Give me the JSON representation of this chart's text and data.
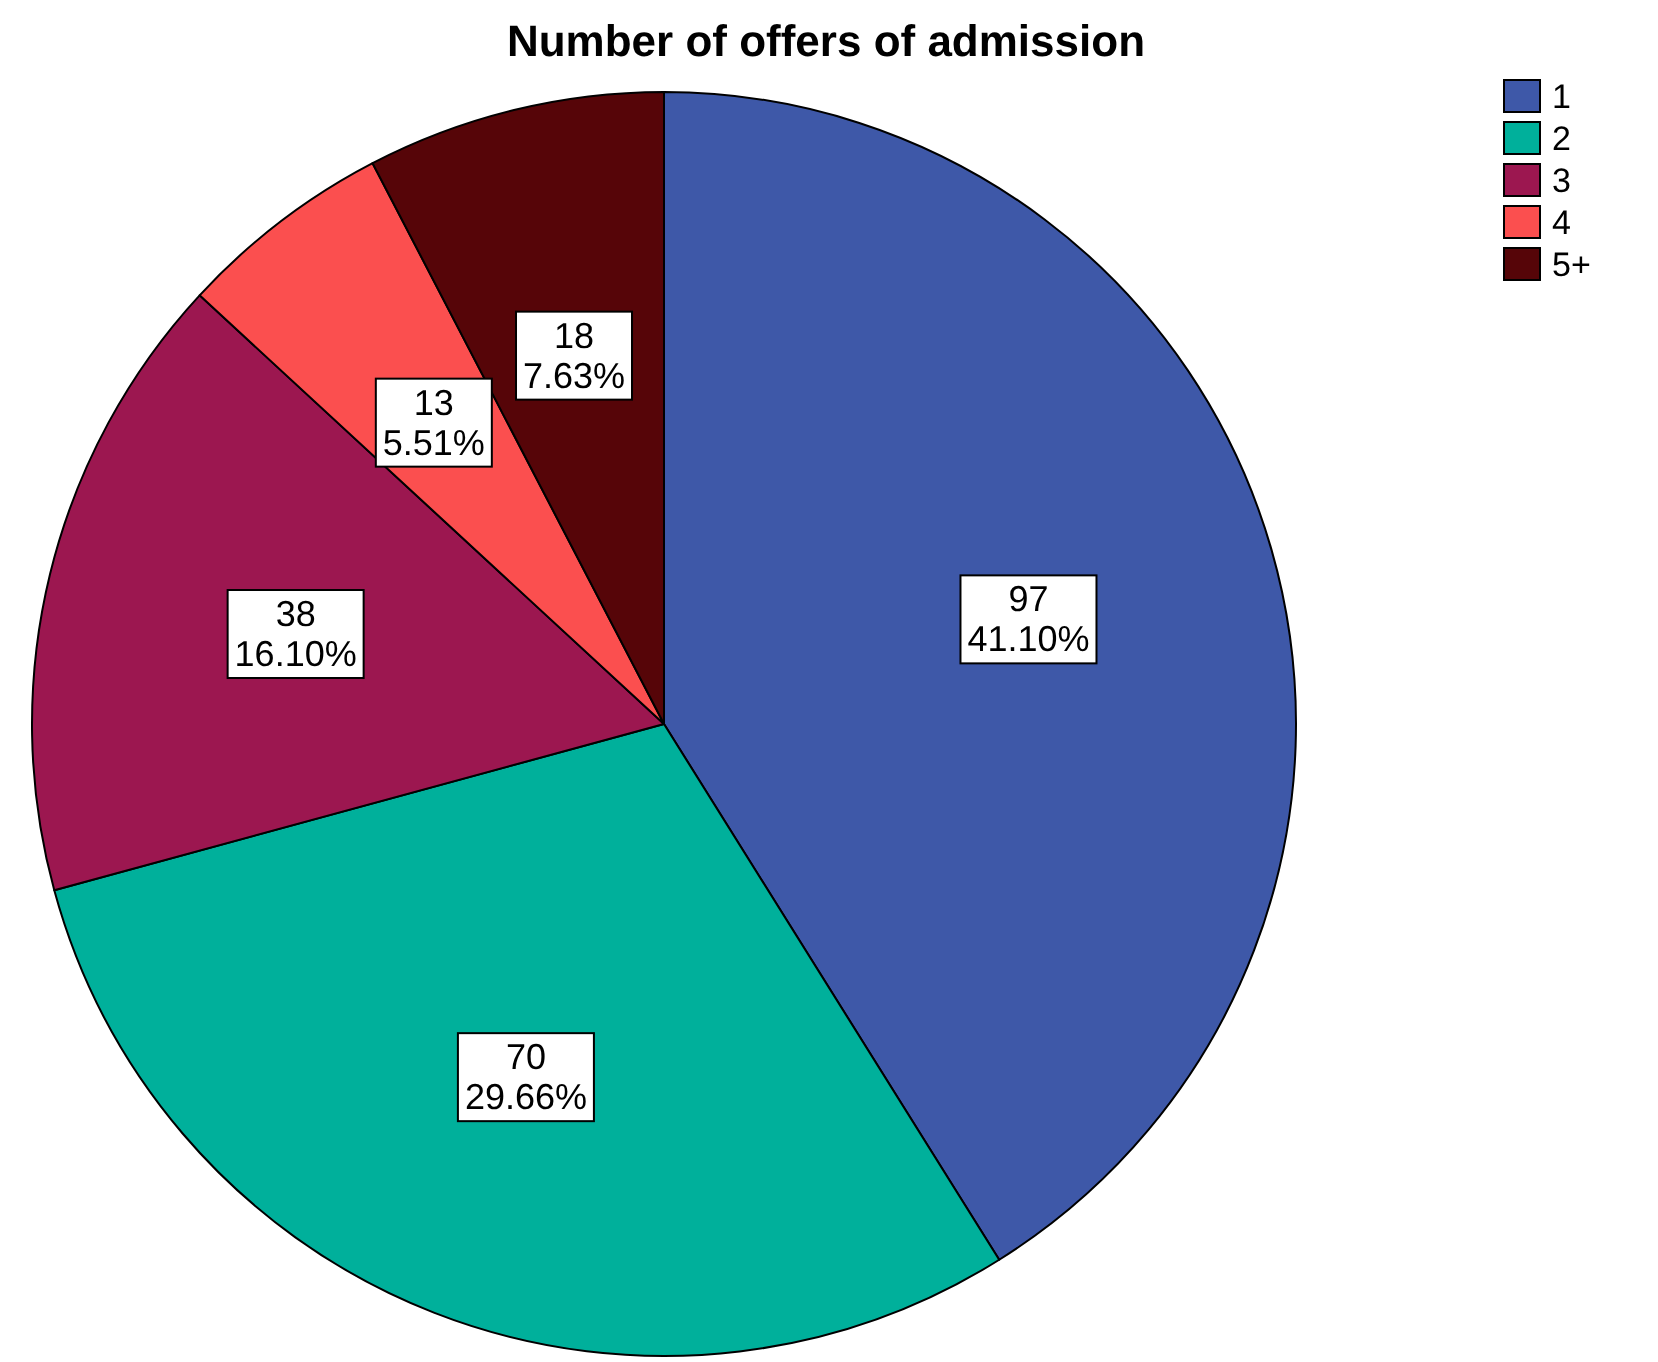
{
  "chart_data": {
    "type": "pie",
    "title": "Number of offers of admission",
    "categories": [
      "1",
      "2",
      "3",
      "4",
      "5+"
    ],
    "values": [
      97,
      70,
      38,
      13,
      18
    ],
    "colors": [
      "#3e58a8",
      "#00b09b",
      "#9c1750",
      "#fb4f4f",
      "#560508"
    ],
    "value_labels": [
      "97\n41.10%",
      "70\n29.66%",
      "38\n16.10%",
      "13\n5.51%",
      "18\n7.63%"
    ],
    "legend": "top right"
  }
}
